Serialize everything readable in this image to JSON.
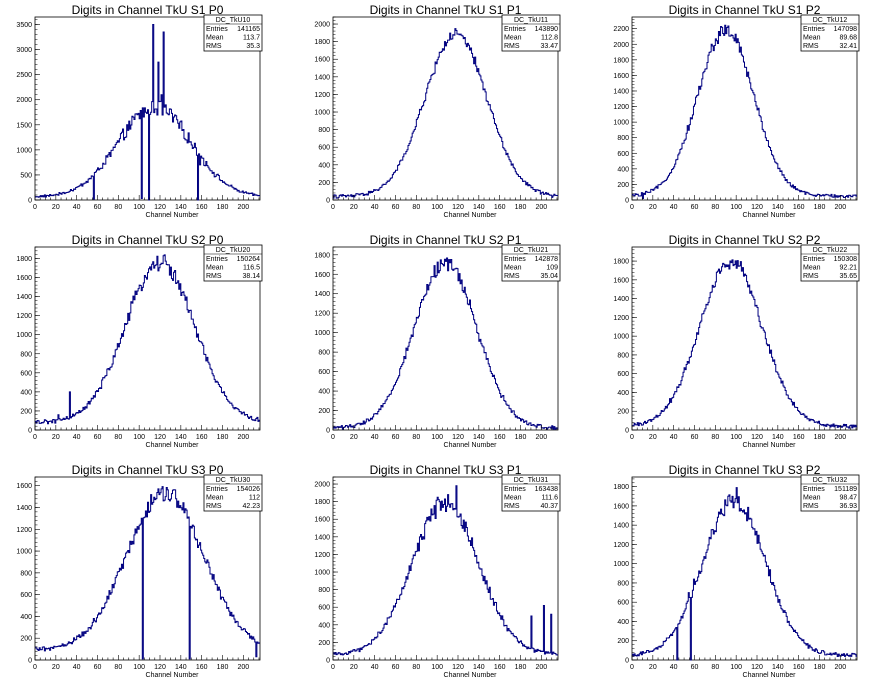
{
  "colors": {
    "line": "#000080",
    "frame": "#000000",
    "background": "#ffffff"
  },
  "chart_data": [
    {
      "type": "histogram",
      "title": "Digits in Channel TkU S1 P0",
      "xlabel": "Channel Number",
      "xlim": [
        0,
        216
      ],
      "ylim": [
        0,
        3650
      ],
      "xticks": [
        0,
        20,
        40,
        60,
        80,
        100,
        120,
        140,
        160,
        180,
        200
      ],
      "yticks": [
        0,
        500,
        1000,
        1500,
        2000,
        2500,
        3000,
        3500
      ],
      "stats": {
        "name": "DC_TkU10",
        "rows": [
          [
            "Entries",
            "141165"
          ],
          [
            "Mean",
            "113.7"
          ],
          [
            "RMS",
            "35.3"
          ]
        ]
      },
      "peak_x": 115,
      "peak_y": 1850,
      "sigma": 35,
      "base": 60,
      "noise": 0.09,
      "spikes": [
        [
          113,
          3500
        ],
        [
          123,
          3350
        ],
        [
          118,
          2750
        ],
        [
          108,
          1800
        ],
        [
          111,
          1750
        ],
        [
          121,
          2100
        ],
        [
          158,
          700
        ]
      ],
      "dips": [
        [
          56,
          20
        ],
        [
          102,
          30
        ],
        [
          109,
          0
        ],
        [
          156,
          0
        ]
      ]
    },
    {
      "type": "histogram",
      "title": "Digits in Channel TkU S1 P1",
      "xlabel": "Channel Number",
      "xlim": [
        0,
        216
      ],
      "ylim": [
        0,
        2080
      ],
      "xticks": [
        0,
        20,
        40,
        60,
        80,
        100,
        120,
        140,
        160,
        180,
        200
      ],
      "yticks": [
        0,
        200,
        400,
        600,
        800,
        1000,
        1200,
        1400,
        1600,
        1800,
        2000
      ],
      "stats": {
        "name": "DC_TkU11",
        "rows": [
          [
            "Entries",
            "143890"
          ],
          [
            "Mean",
            "112.8"
          ],
          [
            "RMS",
            "33.47"
          ]
        ]
      },
      "peak_x": 118,
      "peak_y": 1880,
      "sigma": 30,
      "base": 40,
      "noise": 0.03,
      "spikes": [],
      "dips": [
        [
          210,
          30
        ]
      ]
    },
    {
      "type": "histogram",
      "title": "Digits in Channel TkU S1 P2",
      "xlabel": "Channel Number",
      "xlim": [
        0,
        216
      ],
      "ylim": [
        0,
        2350
      ],
      "xticks": [
        0,
        20,
        40,
        60,
        80,
        100,
        120,
        140,
        160,
        180,
        200
      ],
      "yticks": [
        0,
        200,
        400,
        600,
        800,
        1000,
        1200,
        1400,
        1600,
        1800,
        2000,
        2200
      ],
      "stats": {
        "name": "DC_TkU12",
        "rows": [
          [
            "Entries",
            "147098"
          ],
          [
            "Mean",
            "89.68"
          ],
          [
            "RMS",
            "32.41"
          ]
        ]
      },
      "peak_x": 90,
      "peak_y": 2180,
      "sigma": 27,
      "base": 50,
      "noise": 0.04,
      "spikes": [],
      "dips": [
        [
          10,
          20
        ]
      ]
    },
    {
      "type": "histogram",
      "title": "Digits in Channel TkU S2 P0",
      "xlabel": "Channel Number",
      "xlim": [
        0,
        216
      ],
      "ylim": [
        0,
        1920
      ],
      "xticks": [
        0,
        20,
        40,
        60,
        80,
        100,
        120,
        140,
        160,
        180,
        200
      ],
      "yticks": [
        0,
        200,
        400,
        600,
        800,
        1000,
        1200,
        1400,
        1600,
        1800
      ],
      "stats": {
        "name": "DC_TkU20",
        "rows": [
          [
            "Entries",
            "150264"
          ],
          [
            "Mean",
            "116.5"
          ],
          [
            "RMS",
            "38.14"
          ]
        ]
      },
      "peak_x": 120,
      "peak_y": 1760,
      "sigma": 33,
      "base": 80,
      "noise": 0.05,
      "spikes": [
        [
          33,
          400
        ],
        [
          22,
          160
        ]
      ],
      "dips": []
    },
    {
      "type": "histogram",
      "title": "Digits in Channel TkU S2 P1",
      "xlabel": "Channel Number",
      "xlim": [
        0,
        216
      ],
      "ylim": [
        0,
        1880
      ],
      "xticks": [
        0,
        20,
        40,
        60,
        80,
        100,
        120,
        140,
        160,
        180,
        200
      ],
      "yticks": [
        0,
        200,
        400,
        600,
        800,
        1000,
        1200,
        1400,
        1600,
        1800
      ],
      "stats": {
        "name": "DC_TkU21",
        "rows": [
          [
            "Entries",
            "142878"
          ],
          [
            "Mean",
            "109"
          ],
          [
            "RMS",
            "35.04"
          ]
        ]
      },
      "peak_x": 108,
      "peak_y": 1720,
      "sigma": 30,
      "base": 20,
      "noise": 0.04,
      "spikes": [],
      "dips": []
    },
    {
      "type": "histogram",
      "title": "Digits in Channel TkU S2 P2",
      "xlabel": "Channel Number",
      "xlim": [
        0,
        216
      ],
      "ylim": [
        0,
        1950
      ],
      "xticks": [
        0,
        20,
        40,
        60,
        80,
        100,
        120,
        140,
        160,
        180,
        200
      ],
      "yticks": [
        0,
        200,
        400,
        600,
        800,
        1000,
        1200,
        1400,
        1600,
        1800
      ],
      "stats": {
        "name": "DC_TkU22",
        "rows": [
          [
            "Entries",
            "150308"
          ],
          [
            "Mean",
            "92.21"
          ],
          [
            "RMS",
            "35.65"
          ]
        ]
      },
      "peak_x": 95,
      "peak_y": 1800,
      "sigma": 30,
      "base": 40,
      "noise": 0.04,
      "spikes": [],
      "dips": []
    },
    {
      "type": "histogram",
      "title": "Digits in Channel TkU S3 P0",
      "xlabel": "Channel Number",
      "xlim": [
        0,
        216
      ],
      "ylim": [
        0,
        1680
      ],
      "xticks": [
        0,
        20,
        40,
        60,
        80,
        100,
        120,
        140,
        160,
        180,
        200
      ],
      "yticks": [
        0,
        200,
        400,
        600,
        800,
        1000,
        1200,
        1400,
        1600
      ],
      "stats": {
        "name": "DC_TkU30",
        "rows": [
          [
            "Entries",
            "154026"
          ],
          [
            "Mean",
            "112"
          ],
          [
            "RMS",
            "42.23"
          ]
        ]
      },
      "peak_x": 125,
      "peak_y": 1530,
      "sigma": 37,
      "base": 90,
      "noise": 0.05,
      "spikes": [
        [
          132,
          1560
        ]
      ],
      "dips": [
        [
          103,
          10
        ],
        [
          148,
          10
        ],
        [
          212,
          30
        ]
      ]
    },
    {
      "type": "histogram",
      "title": "Digits in Channel TkU S3 P1",
      "xlabel": "Channel Number",
      "xlim": [
        0,
        216
      ],
      "ylim": [
        0,
        2080
      ],
      "xticks": [
        0,
        20,
        40,
        60,
        80,
        100,
        120,
        140,
        160,
        180,
        200
      ],
      "yticks": [
        0,
        200,
        400,
        600,
        800,
        1000,
        1200,
        1400,
        1600,
        1800,
        2000
      ],
      "stats": {
        "name": "DC_TkU31",
        "rows": [
          [
            "Entries",
            "163438"
          ],
          [
            "Mean",
            "111.6"
          ],
          [
            "RMS",
            "40.37"
          ]
        ]
      },
      "peak_x": 108,
      "peak_y": 1780,
      "sigma": 32,
      "base": 60,
      "noise": 0.06,
      "spikes": [
        [
          118,
          1980
        ],
        [
          110,
          1880
        ],
        [
          100,
          1850
        ],
        [
          202,
          620
        ],
        [
          190,
          500
        ],
        [
          209,
          520
        ]
      ],
      "dips": []
    },
    {
      "type": "histogram",
      "title": "Digits in Channel TkU S3 P2",
      "xlabel": "Channel Number",
      "xlim": [
        0,
        216
      ],
      "ylim": [
        0,
        1900
      ],
      "xticks": [
        0,
        20,
        40,
        60,
        80,
        100,
        120,
        140,
        160,
        180,
        200
      ],
      "yticks": [
        0,
        200,
        400,
        600,
        800,
        1000,
        1200,
        1400,
        1600,
        1800
      ],
      "stats": {
        "name": "DC_TkU32",
        "rows": [
          [
            "Entries",
            "151189"
          ],
          [
            "Mean",
            "98.47"
          ],
          [
            "RMS",
            "36.93"
          ]
        ]
      },
      "peak_x": 98,
      "peak_y": 1660,
      "sigma": 30,
      "base": 50,
      "noise": 0.05,
      "spikes": [
        [
          100,
          1790
        ],
        [
          59,
          840
        ],
        [
          54,
          700
        ],
        [
          65,
          900
        ]
      ],
      "dips": [
        [
          43,
          0
        ],
        [
          56,
          0
        ]
      ]
    }
  ]
}
